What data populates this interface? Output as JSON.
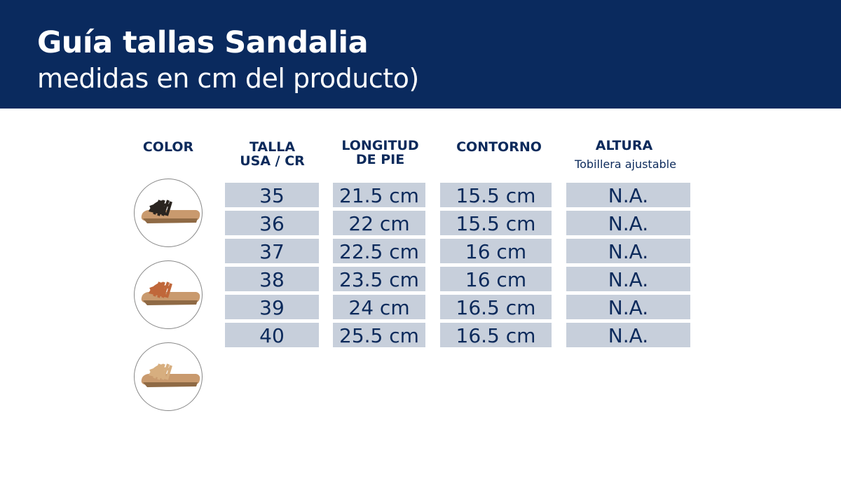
{
  "header": {
    "title": "Guía tallas Sandalia",
    "subtitle": "medidas en cm del producto)"
  },
  "columns": {
    "color": "COLOR",
    "talla": [
      "TALLA",
      "USA / CR"
    ],
    "longitud": [
      "LONGITUD",
      "DE PIE"
    ],
    "contorno": "CONTORNO",
    "altura": "ALTURA",
    "altura_note": "Tobillera ajustable"
  },
  "colors": [
    {
      "name": "black-sandal",
      "strap": "#2a2520"
    },
    {
      "name": "cognac-sandal",
      "strap": "#c0673a"
    },
    {
      "name": "beige-sandal",
      "strap": "#d7ae7f"
    }
  ],
  "rows": [
    {
      "talla": "35",
      "longitud": "21.5 cm",
      "contorno": "15.5 cm",
      "altura": "N.A."
    },
    {
      "talla": "36",
      "longitud": "22 cm",
      "contorno": "15.5 cm",
      "altura": "N.A."
    },
    {
      "talla": "37",
      "longitud": "22.5 cm",
      "contorno": "16 cm",
      "altura": "N.A."
    },
    {
      "talla": "38",
      "longitud": "23.5 cm",
      "contorno": "16 cm",
      "altura": "N.A."
    },
    {
      "talla": "39",
      "longitud": "24 cm",
      "contorno": "16.5 cm",
      "altura": "N.A."
    },
    {
      "talla": "40",
      "longitud": "25.5 cm",
      "contorno": "16.5 cm",
      "altura": "N.A."
    }
  ]
}
